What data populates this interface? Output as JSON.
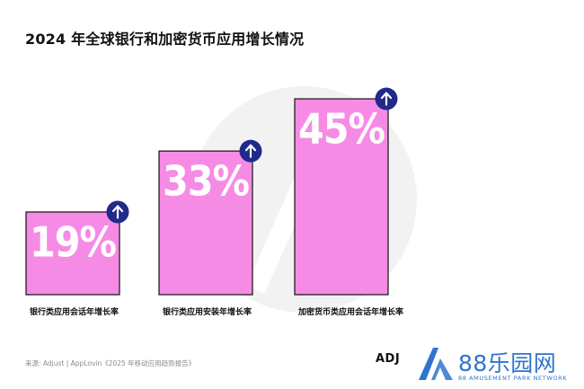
{
  "title": "2024 年全球银行和加密货币应用增长情况",
  "chart_data": {
    "type": "bar",
    "categories": [
      "银行类应用会话年增长率",
      "银行类应用安装年增长率",
      "加密货币类应用会话年增长率"
    ],
    "values": [
      19,
      33,
      45
    ],
    "value_labels": [
      "19%",
      "33%",
      "45%"
    ],
    "unit": "%",
    "ylim": [
      0,
      50
    ],
    "grid": false,
    "legend": "none",
    "indicator": "up-arrow-icon"
  },
  "colors": {
    "bar_fill": "#f68be6",
    "bar_stroke": "#111111",
    "arrow_badge": "#1f2a8a",
    "brand_blue": "#2f74d0"
  },
  "source": "来源: Adjust | AppLovin《2025 年移动应用趋势报告》",
  "logos": {
    "adjust": "ADJ",
    "brand_name": "88乐园网",
    "brand_sub": "88 AMUSEMENT PARK NETWORK"
  }
}
